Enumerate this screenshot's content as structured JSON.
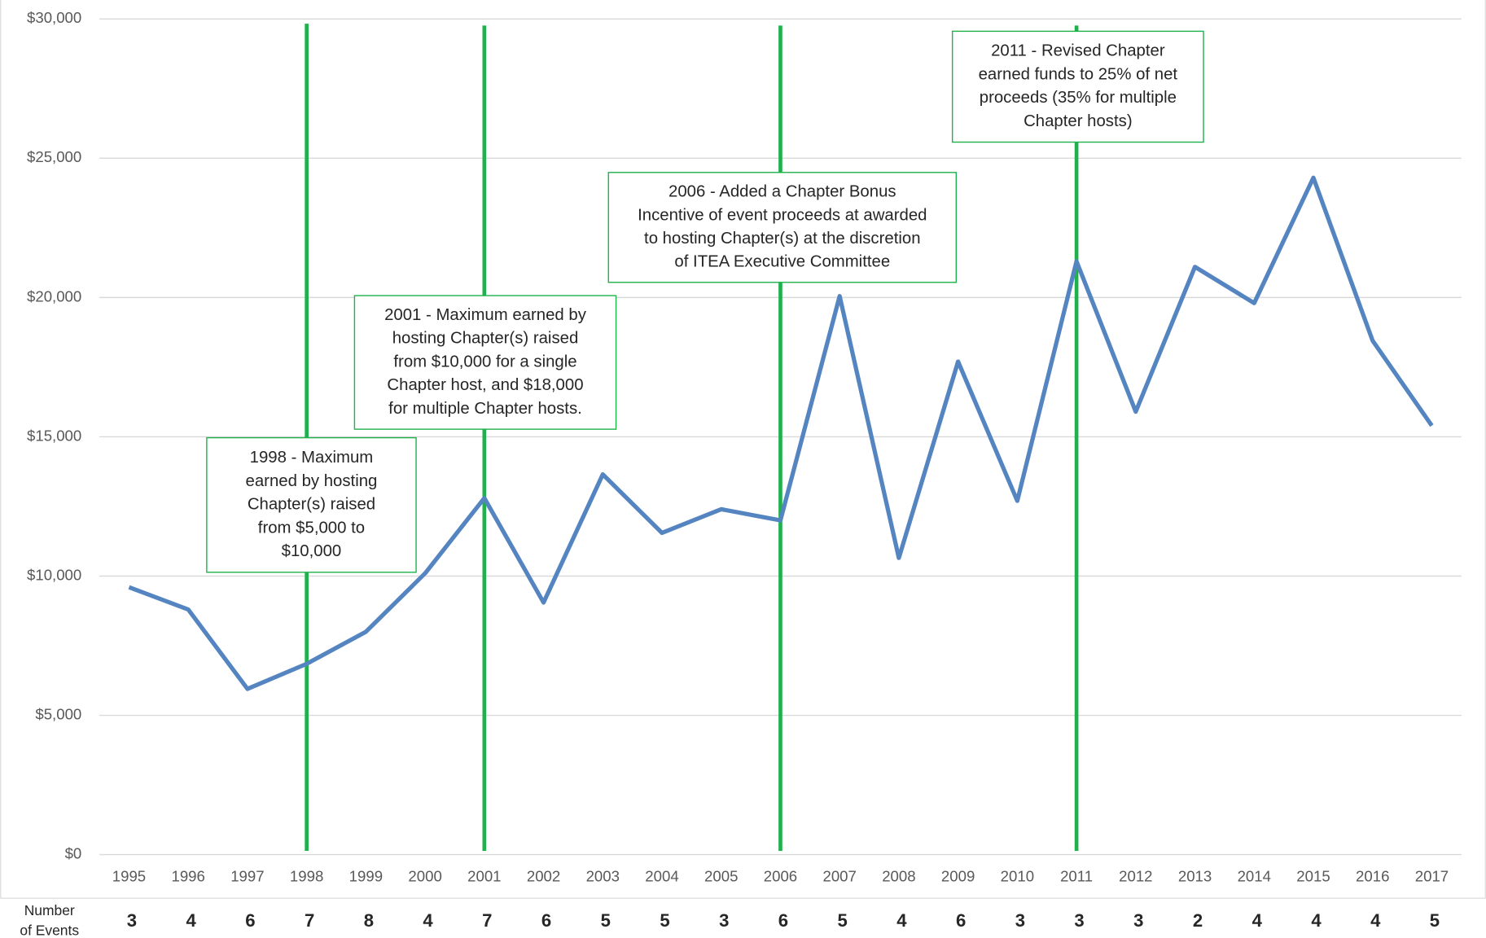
{
  "chart_data": {
    "type": "line",
    "categories": [
      "1995",
      "1996",
      "1997",
      "1998",
      "1999",
      "2000",
      "2001",
      "2002",
      "2003",
      "2004",
      "2005",
      "2006",
      "2007",
      "2008",
      "2009",
      "2010",
      "2011",
      "2012",
      "2013",
      "2014",
      "2015",
      "2016",
      "2017"
    ],
    "series": [
      {
        "color": "#5585c1",
        "values": [
          9600,
          8800,
          5950,
          6850,
          8000,
          10100,
          12800,
          9050,
          13650,
          11550,
          12400,
          12000,
          20050,
          10650,
          17700,
          12700,
          21300,
          15900,
          21100,
          19800,
          24300,
          18450,
          15400
        ]
      }
    ],
    "ylim": [
      0,
      30000
    ],
    "yticks": [
      {
        "value": 0,
        "label": "$0"
      },
      {
        "value": 5000,
        "label": "$5,000"
      },
      {
        "value": 10000,
        "label": "$10,000"
      },
      {
        "value": 15000,
        "label": "$15,000"
      },
      {
        "value": 20000,
        "label": "$20,000"
      },
      {
        "value": 25000,
        "label": "$25,000"
      },
      {
        "value": 30000,
        "label": "$30,000"
      }
    ],
    "grid": true,
    "annotation_color": "#1fb14b",
    "annotations": [
      {
        "x": "1998",
        "lines": [
          "1998 - Maximum",
          "earned by hosting",
          "Chapter(s) raised",
          "from $5,000 to",
          "$10,000"
        ]
      },
      {
        "x": "2001",
        "lines": [
          "2001 - Maximum earned by",
          "hosting Chapter(s) raised",
          "from $10,000 for a single",
          "Chapter host, and $18,000",
          "for multiple Chapter hosts."
        ]
      },
      {
        "x": "2006",
        "lines": [
          "2006 - Added a Chapter Bonus",
          "Incentive of event proceeds at awarded",
          "to hosting Chapter(s) at the discretion",
          "of ITEA Executive Committee"
        ]
      },
      {
        "x": "2011",
        "lines": [
          "2011 - Revised Chapter",
          "earned funds to 25% of net",
          "proceeds (35% for multiple",
          "Chapter hosts)"
        ]
      }
    ],
    "events_label": [
      "Number",
      "of Events"
    ],
    "event_counts": [
      3,
      4,
      6,
      7,
      8,
      4,
      7,
      6,
      5,
      5,
      3,
      6,
      5,
      4,
      6,
      3,
      3,
      3,
      2,
      4,
      4,
      4,
      5
    ]
  }
}
